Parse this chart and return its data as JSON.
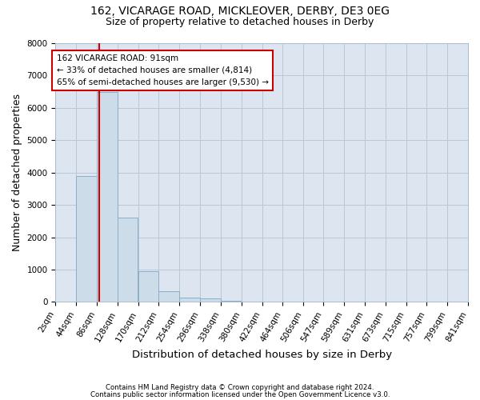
{
  "title1": "162, VICARAGE ROAD, MICKLEOVER, DERBY, DE3 0EG",
  "title2": "Size of property relative to detached houses in Derby",
  "xlabel": "Distribution of detached houses by size in Derby",
  "ylabel": "Number of detached properties",
  "footnote1": "Contains HM Land Registry data © Crown copyright and database right 2024.",
  "footnote2": "Contains public sector information licensed under the Open Government Licence v3.0.",
  "bin_edges": [
    2,
    44,
    86,
    128,
    170,
    212,
    254,
    296,
    338,
    380,
    422,
    464,
    506,
    547,
    589,
    631,
    673,
    715,
    757,
    799,
    841
  ],
  "bar_heights": [
    20,
    3900,
    6500,
    2600,
    950,
    330,
    140,
    100,
    45,
    0,
    0,
    0,
    0,
    0,
    0,
    0,
    0,
    0,
    0,
    0
  ],
  "bar_color": "#ccdce8",
  "bar_edgecolor": "#8aafc8",
  "property_size": 91,
  "annotation_line1": "162 VICARAGE ROAD: 91sqm",
  "annotation_line2": "← 33% of detached houses are smaller (4,814)",
  "annotation_line3": "65% of semi-detached houses are larger (9,530) →",
  "vline_color": "#cc0000",
  "annotation_box_edgecolor": "#cc0000",
  "annotation_box_facecolor": "#ffffff",
  "ylim": [
    0,
    8000
  ],
  "yticks": [
    0,
    1000,
    2000,
    3000,
    4000,
    5000,
    6000,
    7000,
    8000
  ],
  "background_color": "#ffffff",
  "plot_background": "#dde6f0",
  "grid_color": "#b8c8d8",
  "title_fontsize": 10,
  "subtitle_fontsize": 9,
  "axis_label_fontsize": 9,
  "tick_fontsize": 7.5,
  "annotation_fontsize": 7.5
}
